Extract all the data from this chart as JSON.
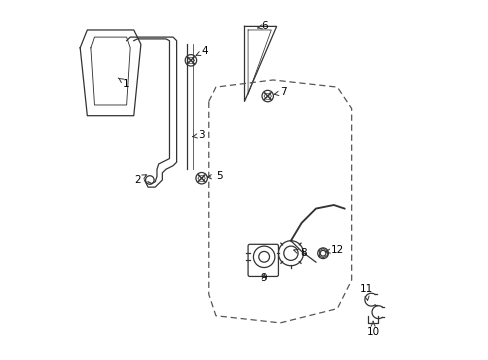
{
  "bg_color": "#ffffff",
  "line_color": "#333333",
  "dashed_color": "#555555",
  "label_color": "#000000",
  "fig_width": 4.89,
  "fig_height": 3.6,
  "dpi": 100,
  "label_fs": 7.5
}
